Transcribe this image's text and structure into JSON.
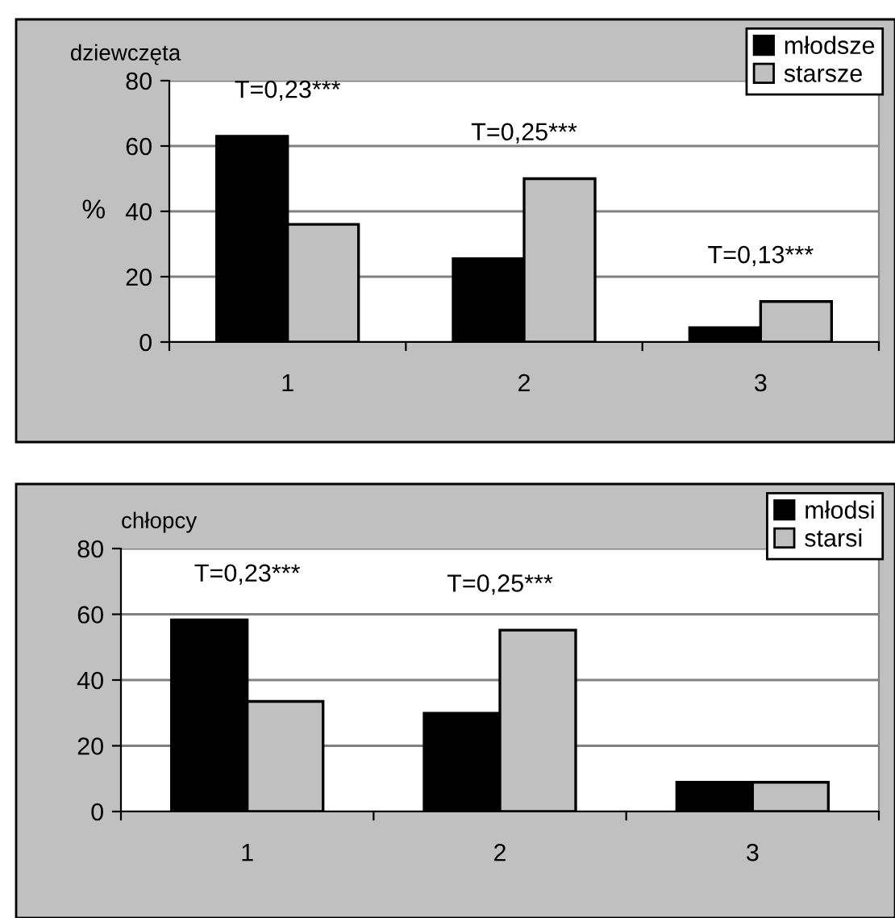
{
  "chart_data": [
    {
      "type": "bar",
      "title": "dziewczęta",
      "ylabel": "%",
      "categories": [
        "1",
        "2",
        "3"
      ],
      "series": [
        {
          "name": "młodsze",
          "color": "#000000",
          "values": [
            63,
            25.5,
            4.4
          ]
        },
        {
          "name": "starsze",
          "color": "#c0c0c0",
          "values": [
            36,
            50,
            12.4
          ]
        }
      ],
      "ylim": [
        0,
        80
      ],
      "yticks": [
        0,
        20,
        40,
        60,
        80
      ],
      "grid": "y",
      "legend": "top right",
      "annotations": [
        "T=0,23***",
        "T=0,25***",
        "T=0,13***"
      ]
    },
    {
      "type": "bar",
      "title": "chłopcy",
      "categories": [
        "1",
        "2",
        "3"
      ],
      "series": [
        {
          "name": "młodsi",
          "color": "#000000",
          "values": [
            58.3,
            29.9,
            8.9
          ]
        },
        {
          "name": "starsi",
          "color": "#c0c0c0",
          "values": [
            33.5,
            55.2,
            8.9
          ]
        }
      ],
      "ylim": [
        0,
        80
      ],
      "yticks": [
        0,
        20,
        40,
        60,
        80
      ],
      "grid": "y",
      "legend": "top right",
      "annotations": [
        "T=0,23***",
        "T=0,25***"
      ]
    }
  ]
}
